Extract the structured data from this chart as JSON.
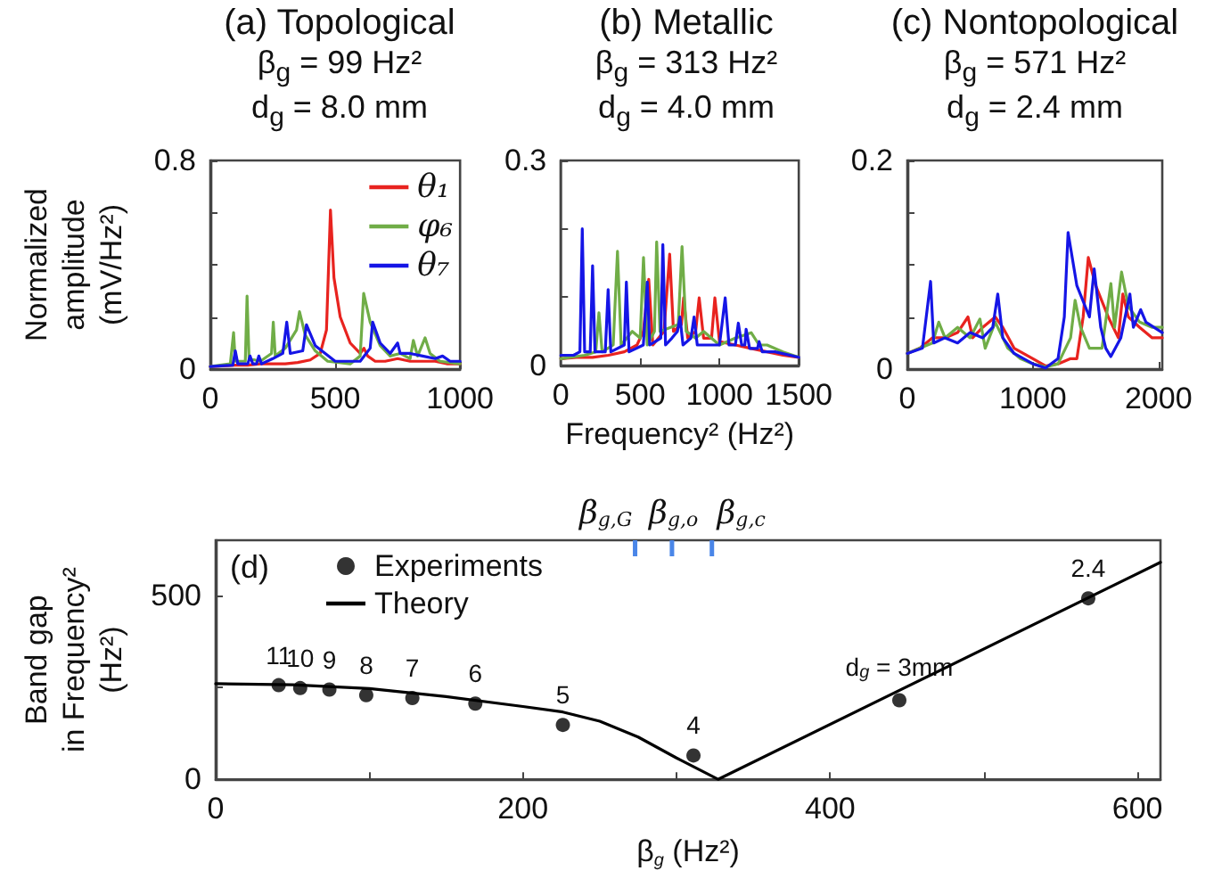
{
  "chart_data": [
    {
      "type": "line",
      "title": "(a) Topological",
      "subtitle": "β$_{g}$ = 99 Hz²\nd$_{g}$ = 8.0 mm",
      "ylabel": "Normalized\namplitude\n(mV/Hz²)",
      "xlim": [
        0,
        1000
      ],
      "xticks": [
        0,
        500,
        1000
      ],
      "ylim": [
        0,
        0.8
      ],
      "yticks": [
        0,
        {
          "value": 0.2,
          "label": null
        },
        {
          "value": 0.4,
          "label": null
        },
        {
          "value": 0.6,
          "label": null
        },
        0.8
      ],
      "legend": "top right",
      "marker": "none",
      "line_style": "solid",
      "series": [
        {
          "name": "θ₁",
          "color": "#e8231f",
          "x": [
            0,
            50,
            100,
            150,
            200,
            250,
            300,
            350,
            400,
            440,
            465,
            481,
            495,
            520,
            560,
            600,
            615,
            630,
            660,
            700,
            750,
            800,
            850,
            900,
            950,
            1000
          ],
          "values": [
            0.01,
            0.012,
            0.015,
            0.015,
            0.02,
            0.02,
            0.02,
            0.025,
            0.035,
            0.06,
            0.15,
            0.61,
            0.35,
            0.2,
            0.1,
            0.06,
            0.08,
            0.05,
            0.03,
            0.03,
            0.04,
            0.03,
            0.03,
            0.03,
            0.02,
            0.02
          ]
        },
        {
          "name": "φ₆",
          "color": "#70ad47",
          "x": [
            0,
            80,
            93,
            100,
            140,
            147,
            155,
            200,
            245,
            252,
            260,
            300,
            345,
            357,
            380,
            420,
            470,
            560,
            600,
            614,
            640,
            680,
            720,
            760,
            800,
            813,
            830,
            860,
            880,
            920,
            1000
          ],
          "values": [
            0.01,
            0.02,
            0.14,
            0.03,
            0.03,
            0.28,
            0.04,
            0.03,
            0.06,
            0.18,
            0.05,
            0.08,
            0.15,
            0.22,
            0.13,
            0.07,
            0.03,
            0.02,
            0.05,
            0.29,
            0.18,
            0.09,
            0.05,
            0.06,
            0.04,
            0.11,
            0.05,
            0.12,
            0.06,
            0.03,
            0.02
          ]
        },
        {
          "name": "θ₇",
          "color": "#1515e6",
          "x": [
            0,
            90,
            100,
            110,
            150,
            159,
            170,
            185,
            194,
            205,
            250,
            290,
            306,
            320,
            370,
            385,
            420,
            500,
            600,
            640,
            650,
            680,
            720,
            750,
            760,
            800,
            850,
            900,
            930,
            960,
            1000
          ],
          "values": [
            0.01,
            0.015,
            0.07,
            0.02,
            0.02,
            0.05,
            0.02,
            0.02,
            0.05,
            0.02,
            0.04,
            0.06,
            0.18,
            0.06,
            0.07,
            0.17,
            0.09,
            0.03,
            0.03,
            0.08,
            0.18,
            0.1,
            0.06,
            0.1,
            0.06,
            0.06,
            0.05,
            0.04,
            0.05,
            0.03,
            0.03
          ]
        }
      ]
    },
    {
      "type": "line",
      "title": "(b) Metallic",
      "subtitle": "β$_{g}$ = 313 Hz²\nd$_{g}$ = 4.0 mm",
      "xlabel": "Frequency² (Hz²)",
      "xlim": [
        0,
        1500
      ],
      "xticks": [
        0,
        500,
        1000,
        1500
      ],
      "ylim": [
        0,
        0.3
      ],
      "yticks": [
        0,
        {
          "value": 0.1,
          "label": null
        },
        {
          "value": 0.2,
          "label": null
        },
        0.3
      ],
      "marker": "none",
      "line_style": "solid",
      "series": [
        {
          "color": "#e8231f",
          "x": [
            0,
            100,
            200,
            300,
            400,
            480,
            520,
            554,
            580,
            650,
            686,
            710,
            760,
            774,
            800,
            850,
            872,
            900,
            950,
            971,
            1000,
            1100,
            1200,
            1300,
            1400,
            1500
          ],
          "values": [
            0.01,
            0.012,
            0.012,
            0.015,
            0.02,
            0.03,
            0.05,
            0.126,
            0.03,
            0.05,
            0.163,
            0.05,
            0.06,
            0.099,
            0.04,
            0.05,
            0.099,
            0.04,
            0.04,
            0.099,
            0.035,
            0.03,
            0.025,
            0.02,
            0.015,
            0.012
          ]
        },
        {
          "color": "#70ad47",
          "x": [
            0,
            150,
            220,
            240,
            260,
            330,
            357,
            380,
            450,
            500,
            521,
            545,
            590,
            604,
            625,
            740,
            764,
            790,
            850,
            900,
            1000,
            1100,
            1200,
            1250,
            1300,
            1400,
            1500
          ],
          "values": [
            0.01,
            0.015,
            0.02,
            0.077,
            0.02,
            0.03,
            0.167,
            0.03,
            0.05,
            0.04,
            0.158,
            0.03,
            0.05,
            0.181,
            0.05,
            0.06,
            0.174,
            0.05,
            0.04,
            0.05,
            0.03,
            0.04,
            0.048,
            0.03,
            0.03,
            0.02,
            0.012
          ]
        },
        {
          "color": "#1515e6",
          "x": [
            0,
            80,
            120,
            135,
            150,
            185,
            200,
            215,
            280,
            298,
            315,
            400,
            413,
            430,
            520,
            545,
            560,
            630,
            643,
            660,
            700,
            735,
            751,
            770,
            820,
            840,
            860,
            1000,
            1036,
            1060,
            1100,
            1119,
            1140,
            1160,
            1168,
            1190,
            1240,
            1250,
            1270,
            1350,
            1500
          ],
          "values": [
            0.015,
            0.015,
            0.02,
            0.2,
            0.02,
            0.02,
            0.146,
            0.02,
            0.02,
            0.111,
            0.02,
            0.03,
            0.122,
            0.02,
            0.03,
            0.122,
            0.03,
            0.04,
            0.177,
            0.03,
            0.04,
            0.05,
            0.071,
            0.03,
            0.04,
            0.071,
            0.03,
            0.03,
            0.099,
            0.03,
            0.03,
            0.062,
            0.03,
            0.03,
            0.053,
            0.025,
            0.025,
            0.035,
            0.02,
            0.02,
            0.012
          ]
        }
      ]
    },
    {
      "type": "line",
      "title": "(c) Nontopological",
      "subtitle": "β$_{g}$ = 571 Hz²\nd$_{g}$ = 2.4 mm",
      "xlim": [
        0,
        2030
      ],
      "xticks": [
        0,
        1000,
        2000
      ],
      "ylim": [
        0,
        0.2
      ],
      "yticks": [
        0,
        {
          "value": 0.05,
          "label": null
        },
        {
          "value": 0.1,
          "label": null
        },
        {
          "value": 0.15,
          "label": null
        },
        0.2
      ],
      "marker": "none",
      "line_style": "solid",
      "series": [
        {
          "color": "#e8231f",
          "x": [
            0,
            100,
            200,
            300,
            400,
            483,
            520,
            600,
            700,
            760,
            850,
            1000,
            1100,
            1200,
            1300,
            1350,
            1400,
            1441,
            1500,
            1600,
            1680,
            1716,
            1760,
            1850,
            1950,
            2030
          ],
          "values": [
            0.015,
            0.02,
            0.03,
            0.03,
            0.035,
            0.05,
            0.03,
            0.04,
            0.05,
            0.04,
            0.02,
            0.01,
            0.003,
            0.005,
            0.01,
            0.01,
            0.05,
            0.107,
            0.08,
            0.05,
            0.03,
            0.072,
            0.05,
            0.04,
            0.03,
            0.03
          ]
        },
        {
          "color": "#70ad47",
          "x": [
            0,
            100,
            200,
            250,
            300,
            400,
            500,
            578,
            620,
            700,
            800,
            900,
            1000,
            1100,
            1200,
            1300,
            1336,
            1380,
            1450,
            1550,
            1621,
            1650,
            1706,
            1760,
            1850,
            1950,
            2030
          ],
          "values": [
            0.015,
            0.02,
            0.025,
            0.045,
            0.03,
            0.04,
            0.03,
            0.048,
            0.02,
            0.045,
            0.02,
            0.01,
            0.005,
            0.002,
            0.005,
            0.03,
            0.066,
            0.04,
            0.02,
            0.02,
            0.082,
            0.04,
            0.093,
            0.06,
            0.045,
            0.04,
            0.04
          ]
        },
        {
          "color": "#1515e6",
          "x": [
            0,
            120,
            185,
            210,
            300,
            400,
            500,
            600,
            680,
            720,
            760,
            850,
            1000,
            1100,
            1200,
            1250,
            1280,
            1350,
            1450,
            1488,
            1540,
            1580,
            1620,
            1700,
            1772,
            1800,
            1858,
            1900,
            2030
          ],
          "values": [
            0.015,
            0.02,
            0.084,
            0.025,
            0.03,
            0.025,
            0.035,
            0.03,
            0.04,
            0.072,
            0.03,
            0.015,
            0.005,
            0.001,
            0.01,
            0.05,
            0.131,
            0.08,
            0.05,
            0.096,
            0.04,
            0.02,
            0.012,
            0.03,
            0.072,
            0.04,
            0.057,
            0.045,
            0.035
          ]
        }
      ]
    },
    {
      "type": "scatter",
      "xlabel": "β$_{g}$ (Hz²)",
      "ylabel": "Band gap\nin Frequency²\n(Hz²)",
      "annotations": [
        "(d)",
        {
          "text": "11",
          "x": 41,
          "y": 256
        },
        {
          "text": "10",
          "x": 55,
          "y": 248
        },
        {
          "text": "9",
          "x": 74,
          "y": 244
        },
        {
          "text": "8",
          "x": 98,
          "y": 229
        },
        {
          "text": "7",
          "x": 128,
          "y": 221
        },
        {
          "text": "6",
          "x": 169,
          "y": 206
        },
        {
          "text": "5",
          "x": 226,
          "y": 148
        },
        {
          "text": "4",
          "x": 311,
          "y": 65
        },
        {
          "text": "d$_{g}$ = 3mm",
          "x": 445,
          "y": 215
        },
        {
          "text": "2.4",
          "x": 568,
          "y": 492
        }
      ],
      "xlim": [
        0,
        615
      ],
      "xticks": [
        0,
        {
          "value": 100,
          "label": null
        },
        200,
        {
          "value": 300,
          "label": null
        },
        400,
        {
          "value": 500,
          "label": null
        },
        600
      ],
      "ref_lines": [
        {
          "axis": "x",
          "value": 273,
          "label": "β$_{g,G}$",
          "color": "#4a86e8"
        },
        {
          "axis": "x",
          "value": 297,
          "label": "β$_{g,o}$",
          "color": "#4a86e8"
        },
        {
          "axis": "x",
          "value": 323,
          "label": "β$_{g,c}$",
          "color": "#4a86e8"
        }
      ],
      "ylim": [
        0,
        650
      ],
      "yticks": [
        0,
        {
          "value": 250,
          "label": null
        },
        500
      ],
      "legend": "top left",
      "series": [
        {
          "name": "Experiments",
          "type": "scatter",
          "marker": "circle",
          "color": "#000000",
          "x": [
            41,
            55,
            74,
            98,
            128,
            169,
            226,
            311,
            445,
            568
          ],
          "values": [
            256,
            248,
            244,
            229,
            221,
            206,
            148,
            65,
            215,
            492
          ]
        },
        {
          "name": "Theory",
          "type": "line",
          "marker": "none",
          "line_style": "solid",
          "color": "#000000",
          "x": [
            0,
            50,
            100,
            150,
            200,
            226,
            250,
            275,
            300,
            327,
            615
          ],
          "values": [
            260,
            257,
            247,
            225,
            198,
            183,
            158,
            115,
            58,
            0,
            590
          ]
        }
      ]
    }
  ]
}
